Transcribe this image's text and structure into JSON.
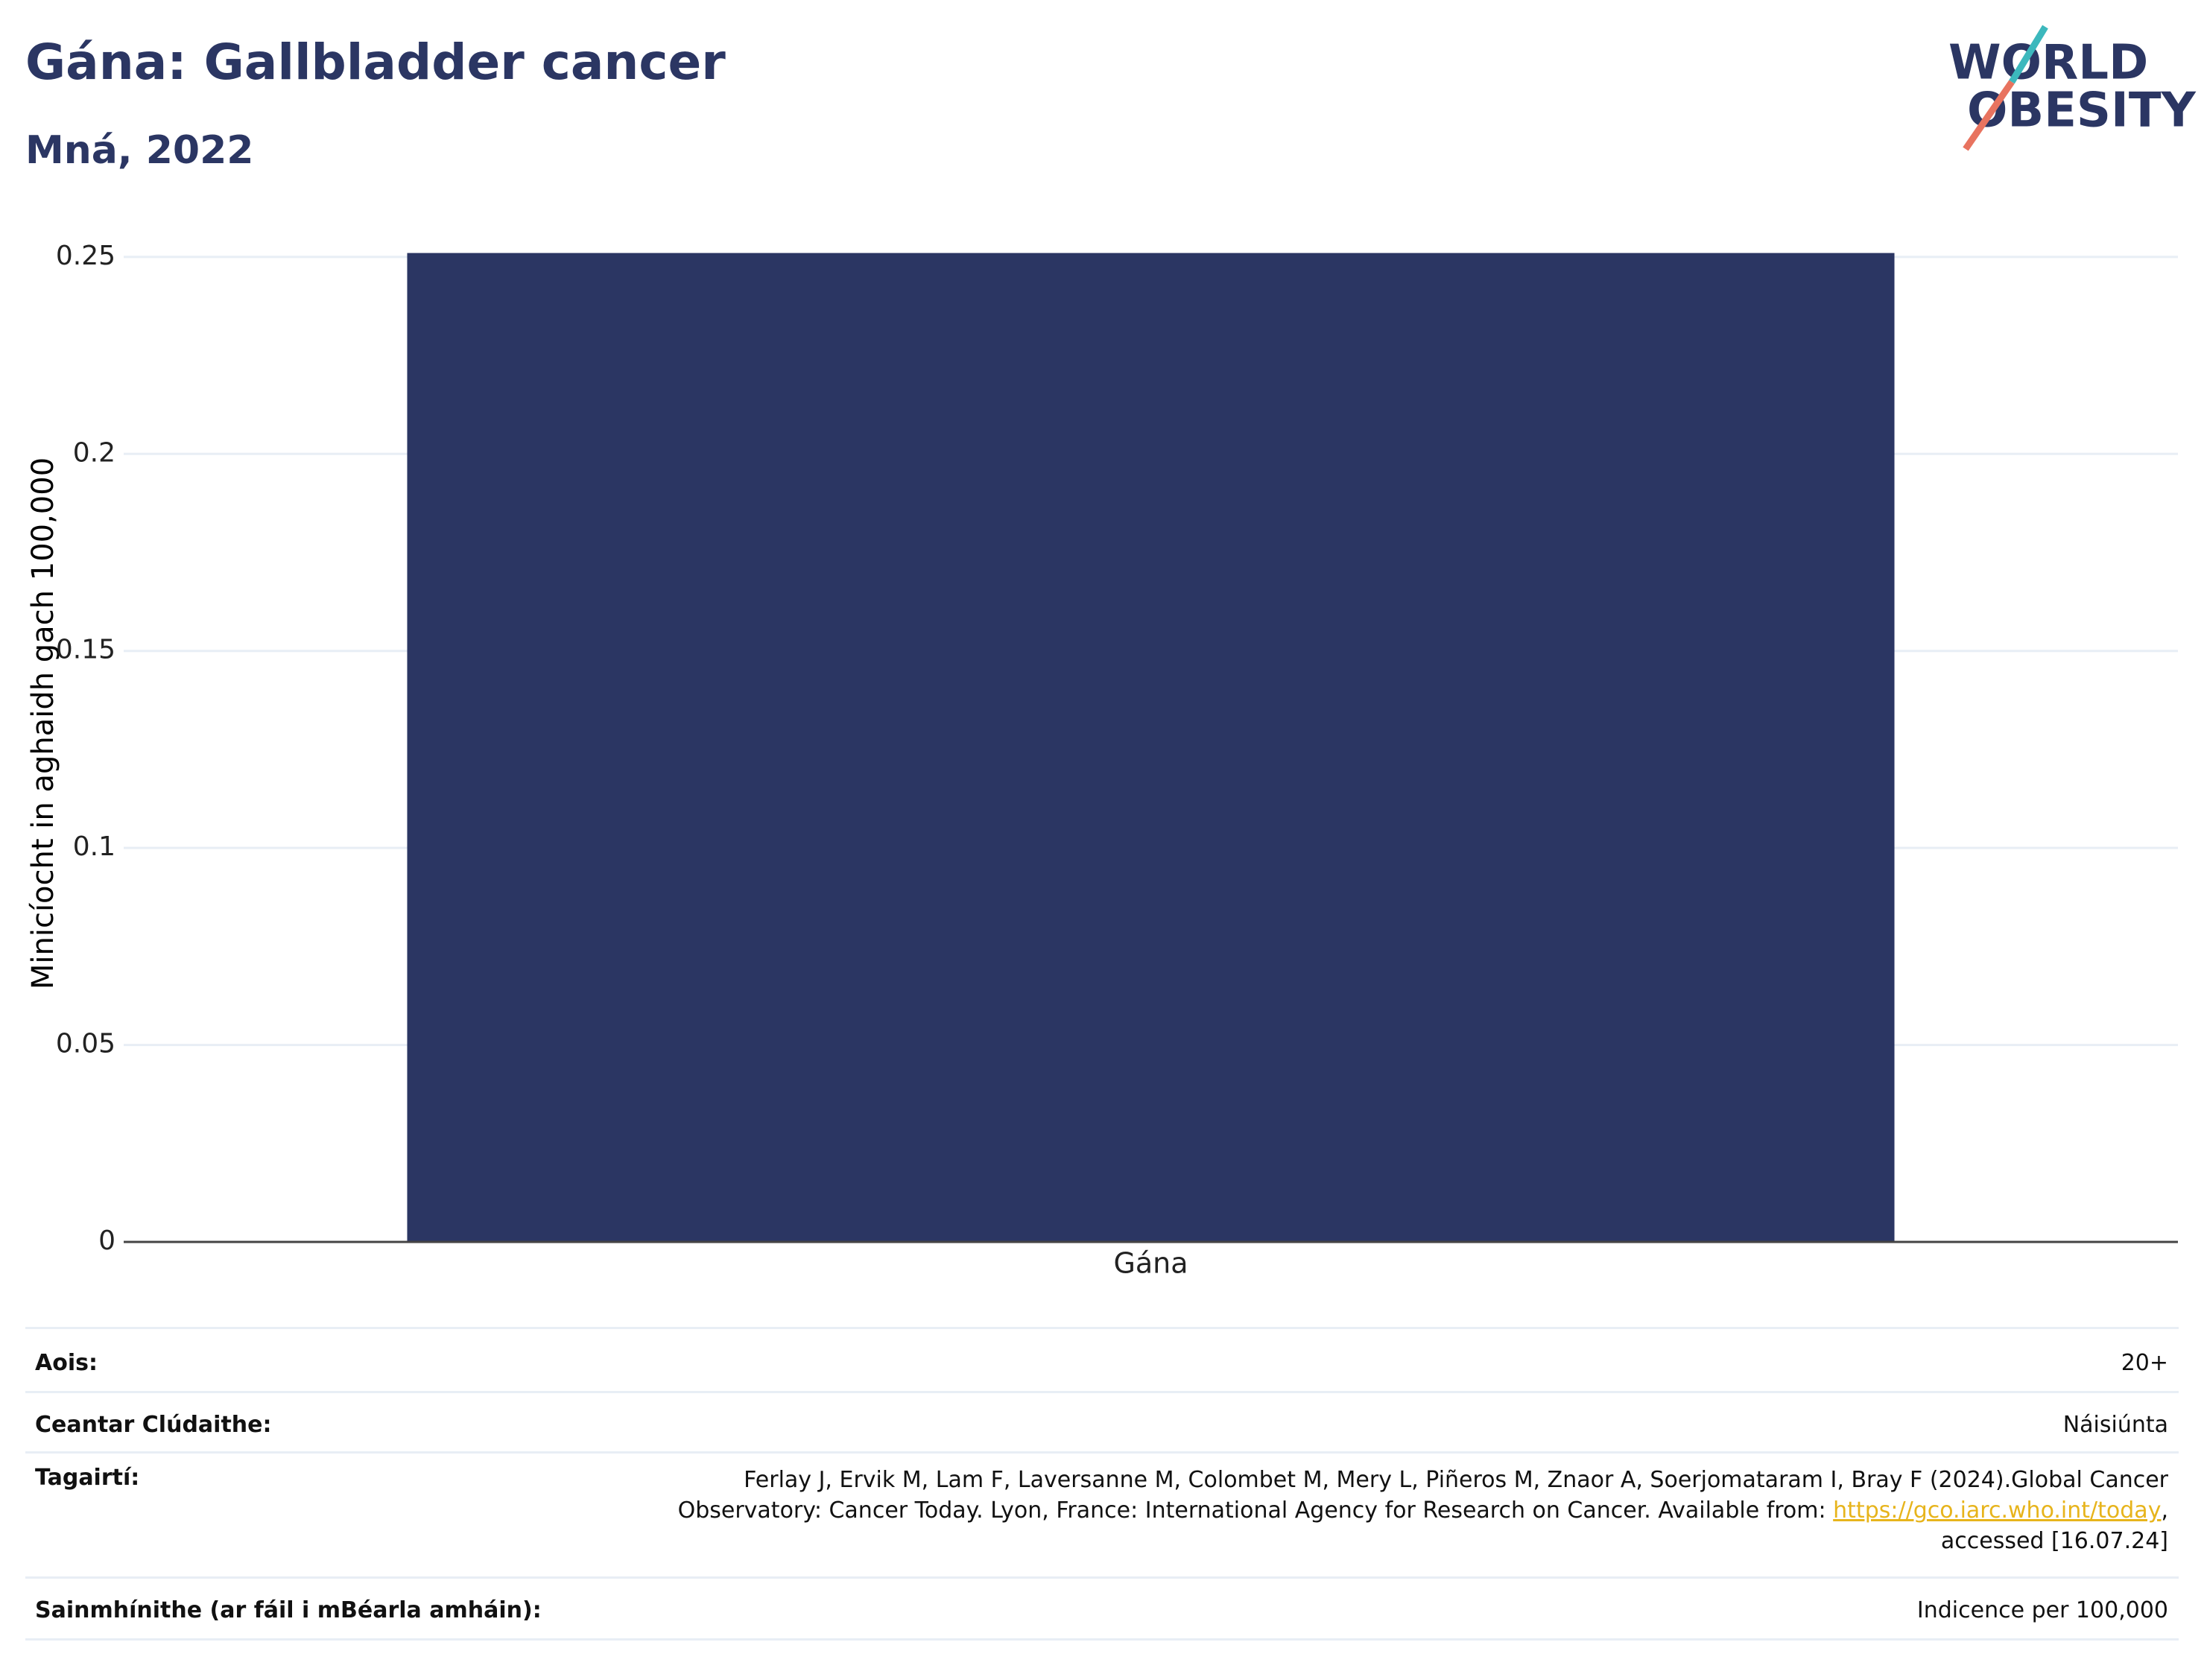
{
  "chart_data": {
    "type": "bar",
    "title": "Gána: Gallbladder cancer",
    "subtitle": "Mná, 2022",
    "y_label": "Minicíocht in aghaidh gach 100,000",
    "categories": [
      "Gána"
    ],
    "values": [
      0.251
    ],
    "color": "#2b3663",
    "ylim": [
      0,
      0.26
    ],
    "yticks": [
      0,
      0.05,
      0.1,
      0.15,
      0.2,
      0.25
    ],
    "grid": true
  },
  "logo": {
    "line1": "WORLD",
    "line2": "OBESITY"
  },
  "table": {
    "rows": [
      {
        "label": "Aois:",
        "value": "20+"
      },
      {
        "label": "Ceantar Clúdaithe:",
        "value": "Náisiúnta"
      },
      {
        "label": "Tagairtí:",
        "value": "Ferlay J, Ervik M, Lam F, Laversanne M, Colombet M, Mery L, Piñeros M, Znaor A, Soerjomataram I, Bray F (2024).Global Cancer Observatory: Cancer Today. Lyon, France: International Agency for Research on Cancer. Available from:",
        "link": "https://gco.iarc.who.int/today",
        "after": ", accessed [16.07.24]"
      },
      {
        "label": "Sainmhínithe (ar fáil i mBéarla amháin):",
        "value": "Indicence per 100,000"
      }
    ]
  }
}
